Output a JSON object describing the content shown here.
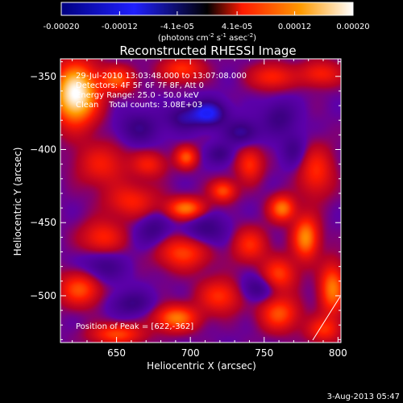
{
  "colorbar": {
    "tick_labels": [
      "-0.00020",
      "-0.00012",
      "-4.1e-05",
      "4.1e-05",
      "0.00012",
      "0.00020"
    ],
    "units_prefix": "(photons cm",
    "units_exp1": "-2",
    "units_mid": " s",
    "units_exp2": "-1",
    "units_mid2": " asec",
    "units_exp3": "-2",
    "units_suffix": ")",
    "range": [
      -0.0002,
      0.0002
    ],
    "colors": {
      "neg_dark": "#000080",
      "neg_mid": "#2020ff",
      "zero": "#000000",
      "pos_red": "#ff1a00",
      "pos_orange": "#ff9a00",
      "pos_white": "#ffffff"
    }
  },
  "chart_data": {
    "type": "heatmap",
    "title": "Reconstructed RHESSI Image",
    "xlabel": "Heliocentric X (arcsec)",
    "ylabel": "Heliocentric Y (arcsec)",
    "xlim": [
      612,
      802
    ],
    "ylim": [
      -532,
      -338
    ],
    "x_ticks": [
      650,
      700,
      750,
      800
    ],
    "y_ticks": [
      -350,
      -400,
      -450,
      -500
    ],
    "x_tick_labels": [
      "650",
      "700",
      "750",
      "800"
    ],
    "y_tick_labels": [
      "−350",
      "−400",
      "−450",
      "−500"
    ],
    "annotations": [
      "29-Jul-2010 13:03:48.000 to 13:07:08.000",
      "Detectors: 4F 5F 6F 7F 8F, Att 0",
      "Energy Range: 25.0 - 50.0 keV",
      "Clean    Total counts: 3.08E+03"
    ],
    "peak_text": "Position of Peak = [622,-362]",
    "peak": [
      622,
      -362
    ],
    "blobs": [
      {
        "x": 622,
        "y": -362,
        "v": 0.0002,
        "sx": 10,
        "sy": 14
      },
      {
        "x": 650,
        "y": -352,
        "v": 9e-05,
        "sx": 8,
        "sy": 6
      },
      {
        "x": 694,
        "y": -345,
        "v": 7.5e-05,
        "sx": 10,
        "sy": 6
      },
      {
        "x": 755,
        "y": -350,
        "v": 7e-05,
        "sx": 10,
        "sy": 6
      },
      {
        "x": 788,
        "y": -348,
        "v": 6.5e-05,
        "sx": 10,
        "sy": 6
      },
      {
        "x": 640,
        "y": -410,
        "v": 6e-05,
        "sx": 12,
        "sy": 10
      },
      {
        "x": 672,
        "y": -410,
        "v": 6e-05,
        "sx": 8,
        "sy": 6
      },
      {
        "x": 697,
        "y": -405,
        "v": 9e-05,
        "sx": 5,
        "sy": 5
      },
      {
        "x": 740,
        "y": -410,
        "v": 7.5e-05,
        "sx": 6,
        "sy": 8
      },
      {
        "x": 722,
        "y": -428,
        "v": 9e-05,
        "sx": 6,
        "sy": 5
      },
      {
        "x": 697,
        "y": -440,
        "v": 0.00011,
        "sx": 9,
        "sy": 5
      },
      {
        "x": 660,
        "y": -435,
        "v": 6.5e-05,
        "sx": 12,
        "sy": 8
      },
      {
        "x": 762,
        "y": -440,
        "v": 0.00011,
        "sx": 6,
        "sy": 6
      },
      {
        "x": 785,
        "y": -415,
        "v": 7e-05,
        "sx": 8,
        "sy": 12
      },
      {
        "x": 778,
        "y": -460,
        "v": 0.00012,
        "sx": 6,
        "sy": 10
      },
      {
        "x": 640,
        "y": -460,
        "v": 7e-05,
        "sx": 10,
        "sy": 8
      },
      {
        "x": 695,
        "y": -470,
        "v": 8.5e-05,
        "sx": 12,
        "sy": 8
      },
      {
        "x": 740,
        "y": -465,
        "v": 7e-05,
        "sx": 8,
        "sy": 8
      },
      {
        "x": 625,
        "y": -495,
        "v": 9e-05,
        "sx": 10,
        "sy": 8
      },
      {
        "x": 760,
        "y": -485,
        "v": 8e-05,
        "sx": 8,
        "sy": 8
      },
      {
        "x": 720,
        "y": -500,
        "v": 7.5e-05,
        "sx": 10,
        "sy": 8
      },
      {
        "x": 690,
        "y": -515,
        "v": 0.00011,
        "sx": 10,
        "sy": 6
      },
      {
        "x": 760,
        "y": -512,
        "v": 9e-05,
        "sx": 9,
        "sy": 8
      },
      {
        "x": 796,
        "y": -495,
        "v": 0.00011,
        "sx": 6,
        "sy": 12
      },
      {
        "x": 650,
        "y": -526,
        "v": 8.5e-05,
        "sx": 12,
        "sy": 5
      },
      {
        "x": 790,
        "y": -523,
        "v": 7e-05,
        "sx": 8,
        "sy": 6
      },
      {
        "x": 712,
        "y": -375,
        "v": -9.5e-05,
        "sx": 8,
        "sy": 6
      },
      {
        "x": 695,
        "y": -378,
        "v": -5e-05,
        "sx": 8,
        "sy": 6
      },
      {
        "x": 735,
        "y": -388,
        "v": -5.5e-05,
        "sx": 8,
        "sy": 6
      },
      {
        "x": 720,
        "y": -403,
        "v": -4.5e-05,
        "sx": 6,
        "sy": 5
      },
      {
        "x": 665,
        "y": -385,
        "v": -4.5e-05,
        "sx": 10,
        "sy": 8
      },
      {
        "x": 760,
        "y": -378,
        "v": -4.5e-05,
        "sx": 8,
        "sy": 8
      },
      {
        "x": 710,
        "y": -455,
        "v": -5e-05,
        "sx": 10,
        "sy": 8
      },
      {
        "x": 675,
        "y": -455,
        "v": -4.5e-05,
        "sx": 8,
        "sy": 8
      },
      {
        "x": 640,
        "y": -480,
        "v": -4.5e-05,
        "sx": 10,
        "sy": 8
      },
      {
        "x": 745,
        "y": -495,
        "v": -5e-05,
        "sx": 8,
        "sy": 6
      },
      {
        "x": 660,
        "y": -505,
        "v": -4.5e-05,
        "sx": 10,
        "sy": 6
      },
      {
        "x": 770,
        "y": -400,
        "v": -4e-05,
        "sx": 6,
        "sy": 8
      }
    ]
  },
  "footer": {
    "date": "3-Aug-2013 05:47"
  }
}
